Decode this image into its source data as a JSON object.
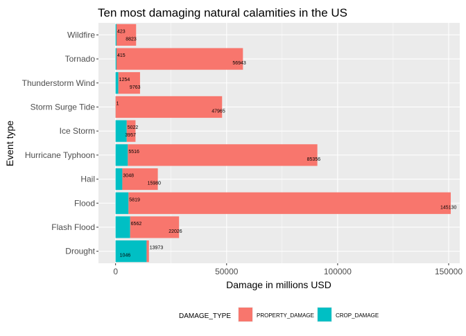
{
  "chart_data": {
    "type": "bar",
    "orientation": "horizontal",
    "stacked": true,
    "title": "Ten most damaging natural calamities in the US",
    "xlabel": "Damage in millions USD",
    "ylabel": "Event type",
    "categories": [
      "Drought",
      "Flash Flood",
      "Flood",
      "Hail",
      "Hurricane Typhoon",
      "Ice Storm",
      "Storm Surge Tide",
      "Thunderstorm Wind",
      "Tornado",
      "Wildfire"
    ],
    "series": [
      {
        "name": "PROPERTY_DAMAGE",
        "color": "#F8766D",
        "values": [
          1046,
          22026,
          145130,
          15980,
          85356,
          3957,
          47965,
          9763,
          56943,
          8823
        ]
      },
      {
        "name": "CROP_DAMAGE",
        "color": "#00BFC4",
        "values": [
          13973,
          6562,
          5819,
          3048,
          5516,
          5022,
          1,
          1254,
          415,
          423
        ]
      }
    ],
    "xlim": [
      0,
      155000
    ],
    "xticks": [
      0,
      50000,
      100000,
      150000
    ],
    "xtick_labels": [
      "0",
      "50000",
      "100000",
      "150000"
    ],
    "grid": true,
    "legend": {
      "title": "DAMAGE_TYPE",
      "position": "bottom"
    }
  }
}
